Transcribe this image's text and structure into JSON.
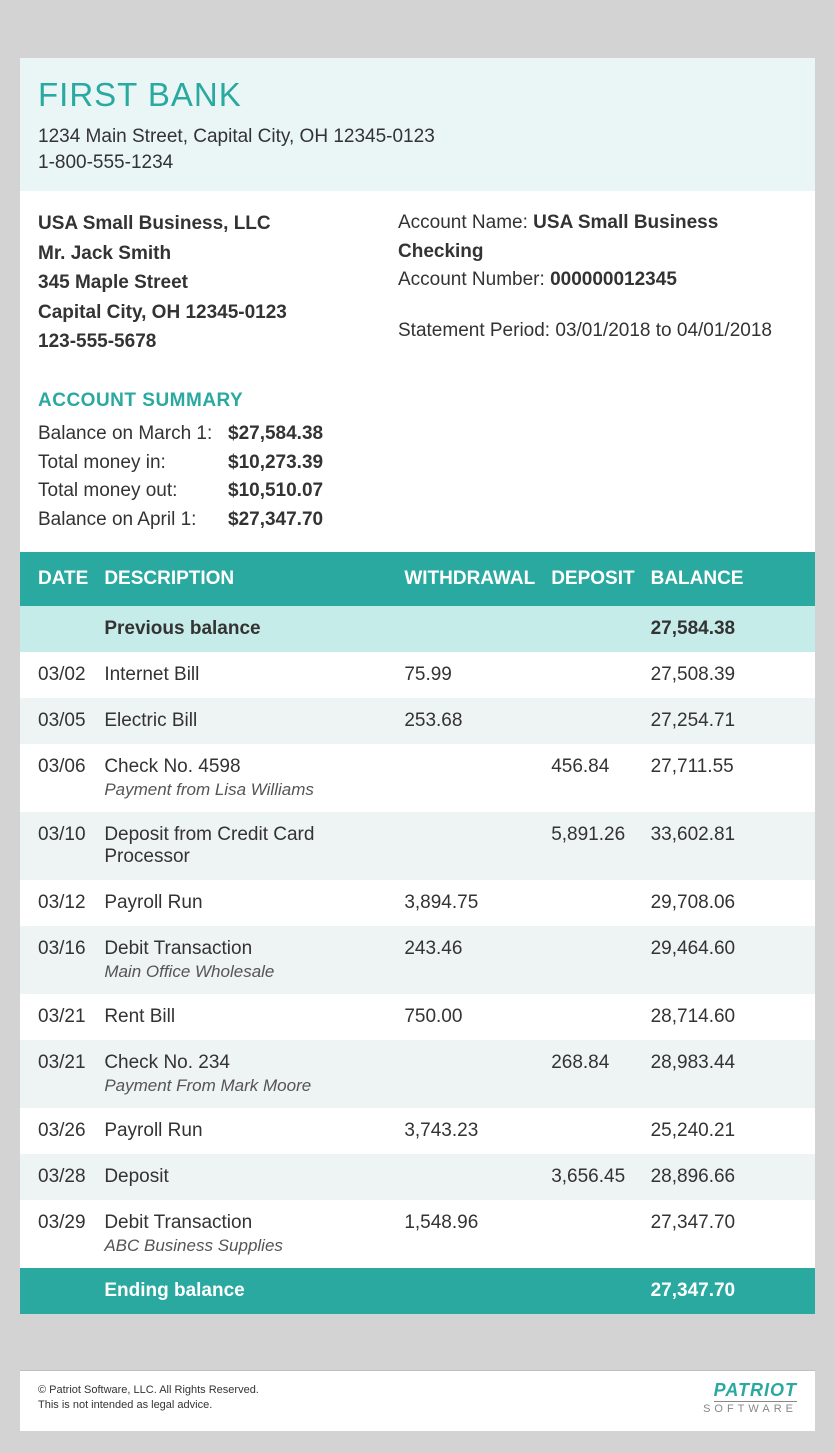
{
  "colors": {
    "page_bg": "#d3d3d3",
    "accent": "#2aa9a0",
    "header_bg": "#e9f6f5",
    "row_alt_bg": "#eef3f3",
    "prev_row_bg": "#c5ece8",
    "text": "#333333",
    "white": "#ffffff"
  },
  "bank": {
    "name": "FIRST BANK",
    "address": "1234 Main Street, Capital City, OH 12345-0123",
    "phone": "1-800-555-1234"
  },
  "recipient": {
    "company": "USA Small Business, LLC",
    "contact": "Mr. Jack Smith",
    "street": "345 Maple Street",
    "city_state": "Capital City, OH 12345-0123",
    "phone": "123-555-5678"
  },
  "account": {
    "name_label": "Account Name: ",
    "name_value": "USA Small Business Checking",
    "number_label": "Account Number: ",
    "number_value": "000000012345",
    "period_label": "Statement Period: ",
    "period_value": "03/01/2018 to 04/01/2018"
  },
  "summary": {
    "title": "ACCOUNT SUMMARY",
    "rows": [
      {
        "label": "Balance on March 1:",
        "value": "$27,584.38"
      },
      {
        "label": "Total money in:",
        "value": "$10,273.39"
      },
      {
        "label": "Total money out:",
        "value": "$10,510.07"
      },
      {
        "label": "Balance on April 1:",
        "value": "$27,347.70"
      }
    ]
  },
  "table": {
    "headers": {
      "date": "DATE",
      "desc": "DESCRIPTION",
      "withdrawal": "WITHDRAWAL",
      "deposit": "DEPOSIT",
      "balance": "BALANCE"
    },
    "previous": {
      "label": "Previous balance",
      "balance": "27,584.38"
    },
    "rows": [
      {
        "date": "03/02",
        "desc": "Internet Bill",
        "sub": "",
        "withdrawal": "75.99",
        "deposit": "",
        "balance": "27,508.39"
      },
      {
        "date": "03/05",
        "desc": "Electric Bill",
        "sub": "",
        "withdrawal": "253.68",
        "deposit": "",
        "balance": "27,254.71"
      },
      {
        "date": "03/06",
        "desc": "Check No. 4598",
        "sub": "Payment from Lisa Williams",
        "withdrawal": "",
        "deposit": "456.84",
        "balance": "27,711.55"
      },
      {
        "date": "03/10",
        "desc": "Deposit from Credit Card Processor",
        "sub": "",
        "withdrawal": "",
        "deposit": "5,891.26",
        "balance": "33,602.81"
      },
      {
        "date": "03/12",
        "desc": "Payroll Run",
        "sub": "",
        "withdrawal": "3,894.75",
        "deposit": "",
        "balance": "29,708.06"
      },
      {
        "date": "03/16",
        "desc": "Debit Transaction",
        "sub": "Main Office Wholesale",
        "withdrawal": "243.46",
        "deposit": "",
        "balance": "29,464.60"
      },
      {
        "date": "03/21",
        "desc": "Rent Bill",
        "sub": "",
        "withdrawal": "750.00",
        "deposit": "",
        "balance": "28,714.60"
      },
      {
        "date": "03/21",
        "desc": "Check No. 234",
        "sub": "Payment From Mark Moore",
        "withdrawal": "",
        "deposit": "268.84",
        "balance": "28,983.44"
      },
      {
        "date": "03/26",
        "desc": "Payroll Run",
        "sub": "",
        "withdrawal": "3,743.23",
        "deposit": "",
        "balance": "25,240.21"
      },
      {
        "date": "03/28",
        "desc": "Deposit",
        "sub": "",
        "withdrawal": "",
        "deposit": "3,656.45",
        "balance": "28,896.66"
      },
      {
        "date": "03/29",
        "desc": "Debit Transaction",
        "sub": "ABC Business Supplies",
        "withdrawal": "1,548.96",
        "deposit": "",
        "balance": "27,347.70"
      }
    ],
    "ending": {
      "label": "Ending balance",
      "balance": "27,347.70"
    }
  },
  "footer": {
    "copyright": "© Patriot Software, LLC. All Rights Reserved.",
    "disclaimer": "This is not intended as legal advice.",
    "logo_top": "PATRIOT",
    "logo_bottom": "SOFTWARE"
  }
}
